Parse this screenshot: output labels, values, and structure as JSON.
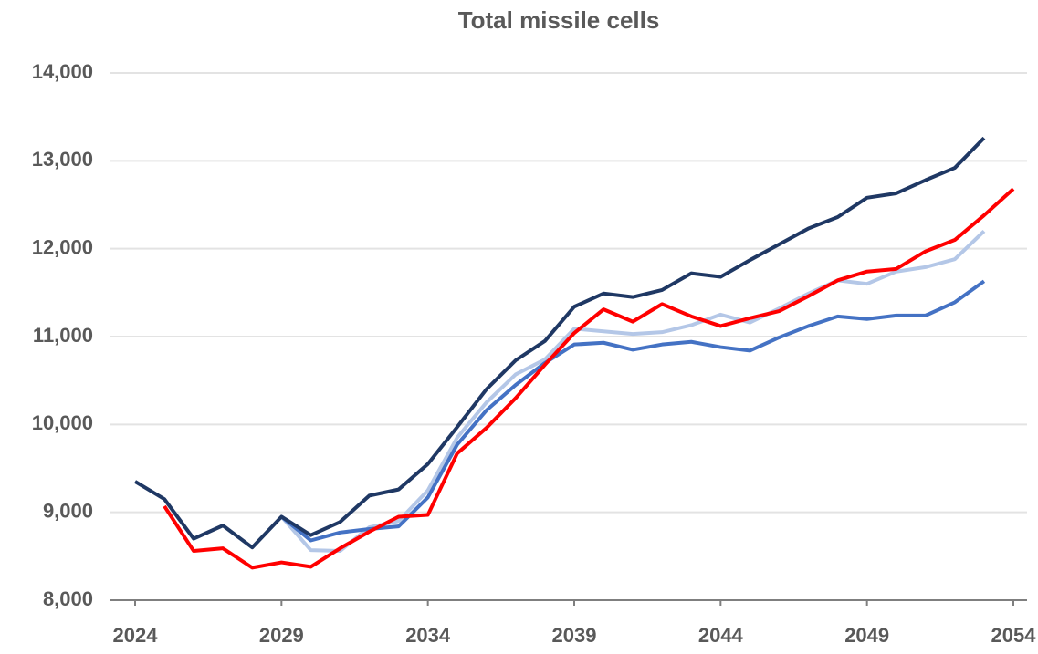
{
  "chart_data": {
    "type": "line",
    "title": "Total missile cells",
    "x": [
      2024,
      2025,
      2026,
      2027,
      2028,
      2029,
      2030,
      2031,
      2032,
      2033,
      2034,
      2035,
      2036,
      2037,
      2038,
      2039,
      2040,
      2041,
      2042,
      2043,
      2044,
      2045,
      2046,
      2047,
      2048,
      2049,
      2050,
      2051,
      2052,
      2053,
      2054
    ],
    "xlim": [
      2024,
      2054
    ],
    "xticks": [
      2024,
      2029,
      2034,
      2039,
      2044,
      2049,
      2054
    ],
    "ylim": [
      8000,
      14000
    ],
    "yticks": [
      {
        "value": 8000,
        "label": "8,000"
      },
      {
        "value": 9000,
        "label": "9,000"
      },
      {
        "value": 10000,
        "label": "10,000"
      },
      {
        "value": 11000,
        "label": "11,000"
      },
      {
        "value": 12000,
        "label": "12,000"
      },
      {
        "value": 13000,
        "label": "13,000"
      },
      {
        "value": 14000,
        "label": "14,000"
      }
    ],
    "grid": true,
    "series": [
      {
        "color": "#b4c7e7",
        "values": [
          null,
          null,
          null,
          null,
          null,
          8950,
          8570,
          8560,
          8830,
          8900,
          9250,
          9850,
          10250,
          10570,
          10740,
          11090,
          11060,
          11030,
          11050,
          11130,
          11250,
          11160,
          11320,
          11490,
          11640,
          11600,
          11740,
          11790,
          11880,
          12200,
          null
        ]
      },
      {
        "color": "#4472c4",
        "values": [
          null,
          null,
          null,
          null,
          null,
          8950,
          8680,
          8770,
          8810,
          8840,
          9170,
          9770,
          10160,
          10450,
          10700,
          10910,
          10930,
          10850,
          10910,
          10940,
          10880,
          10840,
          10990,
          11120,
          11230,
          11200,
          11240,
          11240,
          11390,
          11630,
          null
        ]
      },
      {
        "color": "#1f3864",
        "values": [
          9350,
          9150,
          8700,
          8850,
          8600,
          8950,
          8740,
          8890,
          9190,
          9260,
          9550,
          9970,
          10400,
          10730,
          10950,
          11340,
          11490,
          11450,
          11530,
          11720,
          11680,
          11870,
          12050,
          12230,
          12360,
          12580,
          12630,
          12780,
          12920,
          13260,
          null
        ]
      },
      {
        "color": "#ff0000",
        "values": [
          null,
          9070,
          8560,
          8590,
          8370,
          8430,
          8380,
          8590,
          8780,
          8950,
          8970,
          9670,
          9960,
          10300,
          10680,
          11040,
          11310,
          11170,
          11370,
          11230,
          11120,
          11210,
          11290,
          11460,
          11640,
          11740,
          11770,
          11970,
          12100,
          12380,
          12680
        ]
      }
    ]
  }
}
